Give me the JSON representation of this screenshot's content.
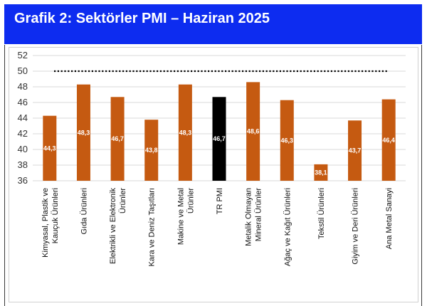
{
  "header": {
    "title": "Grafik 2: Sektörler PMI – Haziran 2025"
  },
  "colors": {
    "header_bg": "#0d2cf0",
    "bar": "#c55a11",
    "highlight_bar": "#000000",
    "reference_line": "#000000"
  },
  "chart_data": {
    "type": "bar",
    "title": "Grafik 2: Sektörler PMI – Haziran 2025",
    "categories": [
      [
        "Kimyasal, Plastik ve",
        "Kauçuk Ürünleri"
      ],
      [
        "Gıda Ürünleri"
      ],
      [
        "Elektrikli ve Elektronik",
        "Ürünler"
      ],
      [
        "Kara ve Deniz Taşıtları"
      ],
      [
        "Makine ve Metal",
        "Ürünler"
      ],
      [
        "TR PMI"
      ],
      [
        "Metalik Olmayan",
        "Mineral Ürünler"
      ],
      [
        "Ağaç ve Kağıt Ürünleri"
      ],
      [
        "Tekstil Ürünleri"
      ],
      [
        "Giyim ve Deri Ürünleri"
      ],
      [
        "Ana Metal Sanayi"
      ]
    ],
    "values": [
      44.3,
      48.3,
      46.7,
      43.8,
      48.3,
      46.7,
      48.6,
      46.3,
      38.1,
      43.7,
      46.4
    ],
    "data_labels": [
      "44,3",
      "48,3",
      "46,7",
      "43,8",
      "48,3",
      "46,7",
      "48,6",
      "46,3",
      "38,1",
      "43,7",
      "46,4"
    ],
    "highlight_index": 5,
    "ylim": [
      36,
      52
    ],
    "yticks": [
      36,
      38,
      40,
      42,
      44,
      46,
      48,
      50,
      52
    ],
    "reference_line": 50,
    "grid": true,
    "xlabel": "",
    "ylabel": ""
  }
}
